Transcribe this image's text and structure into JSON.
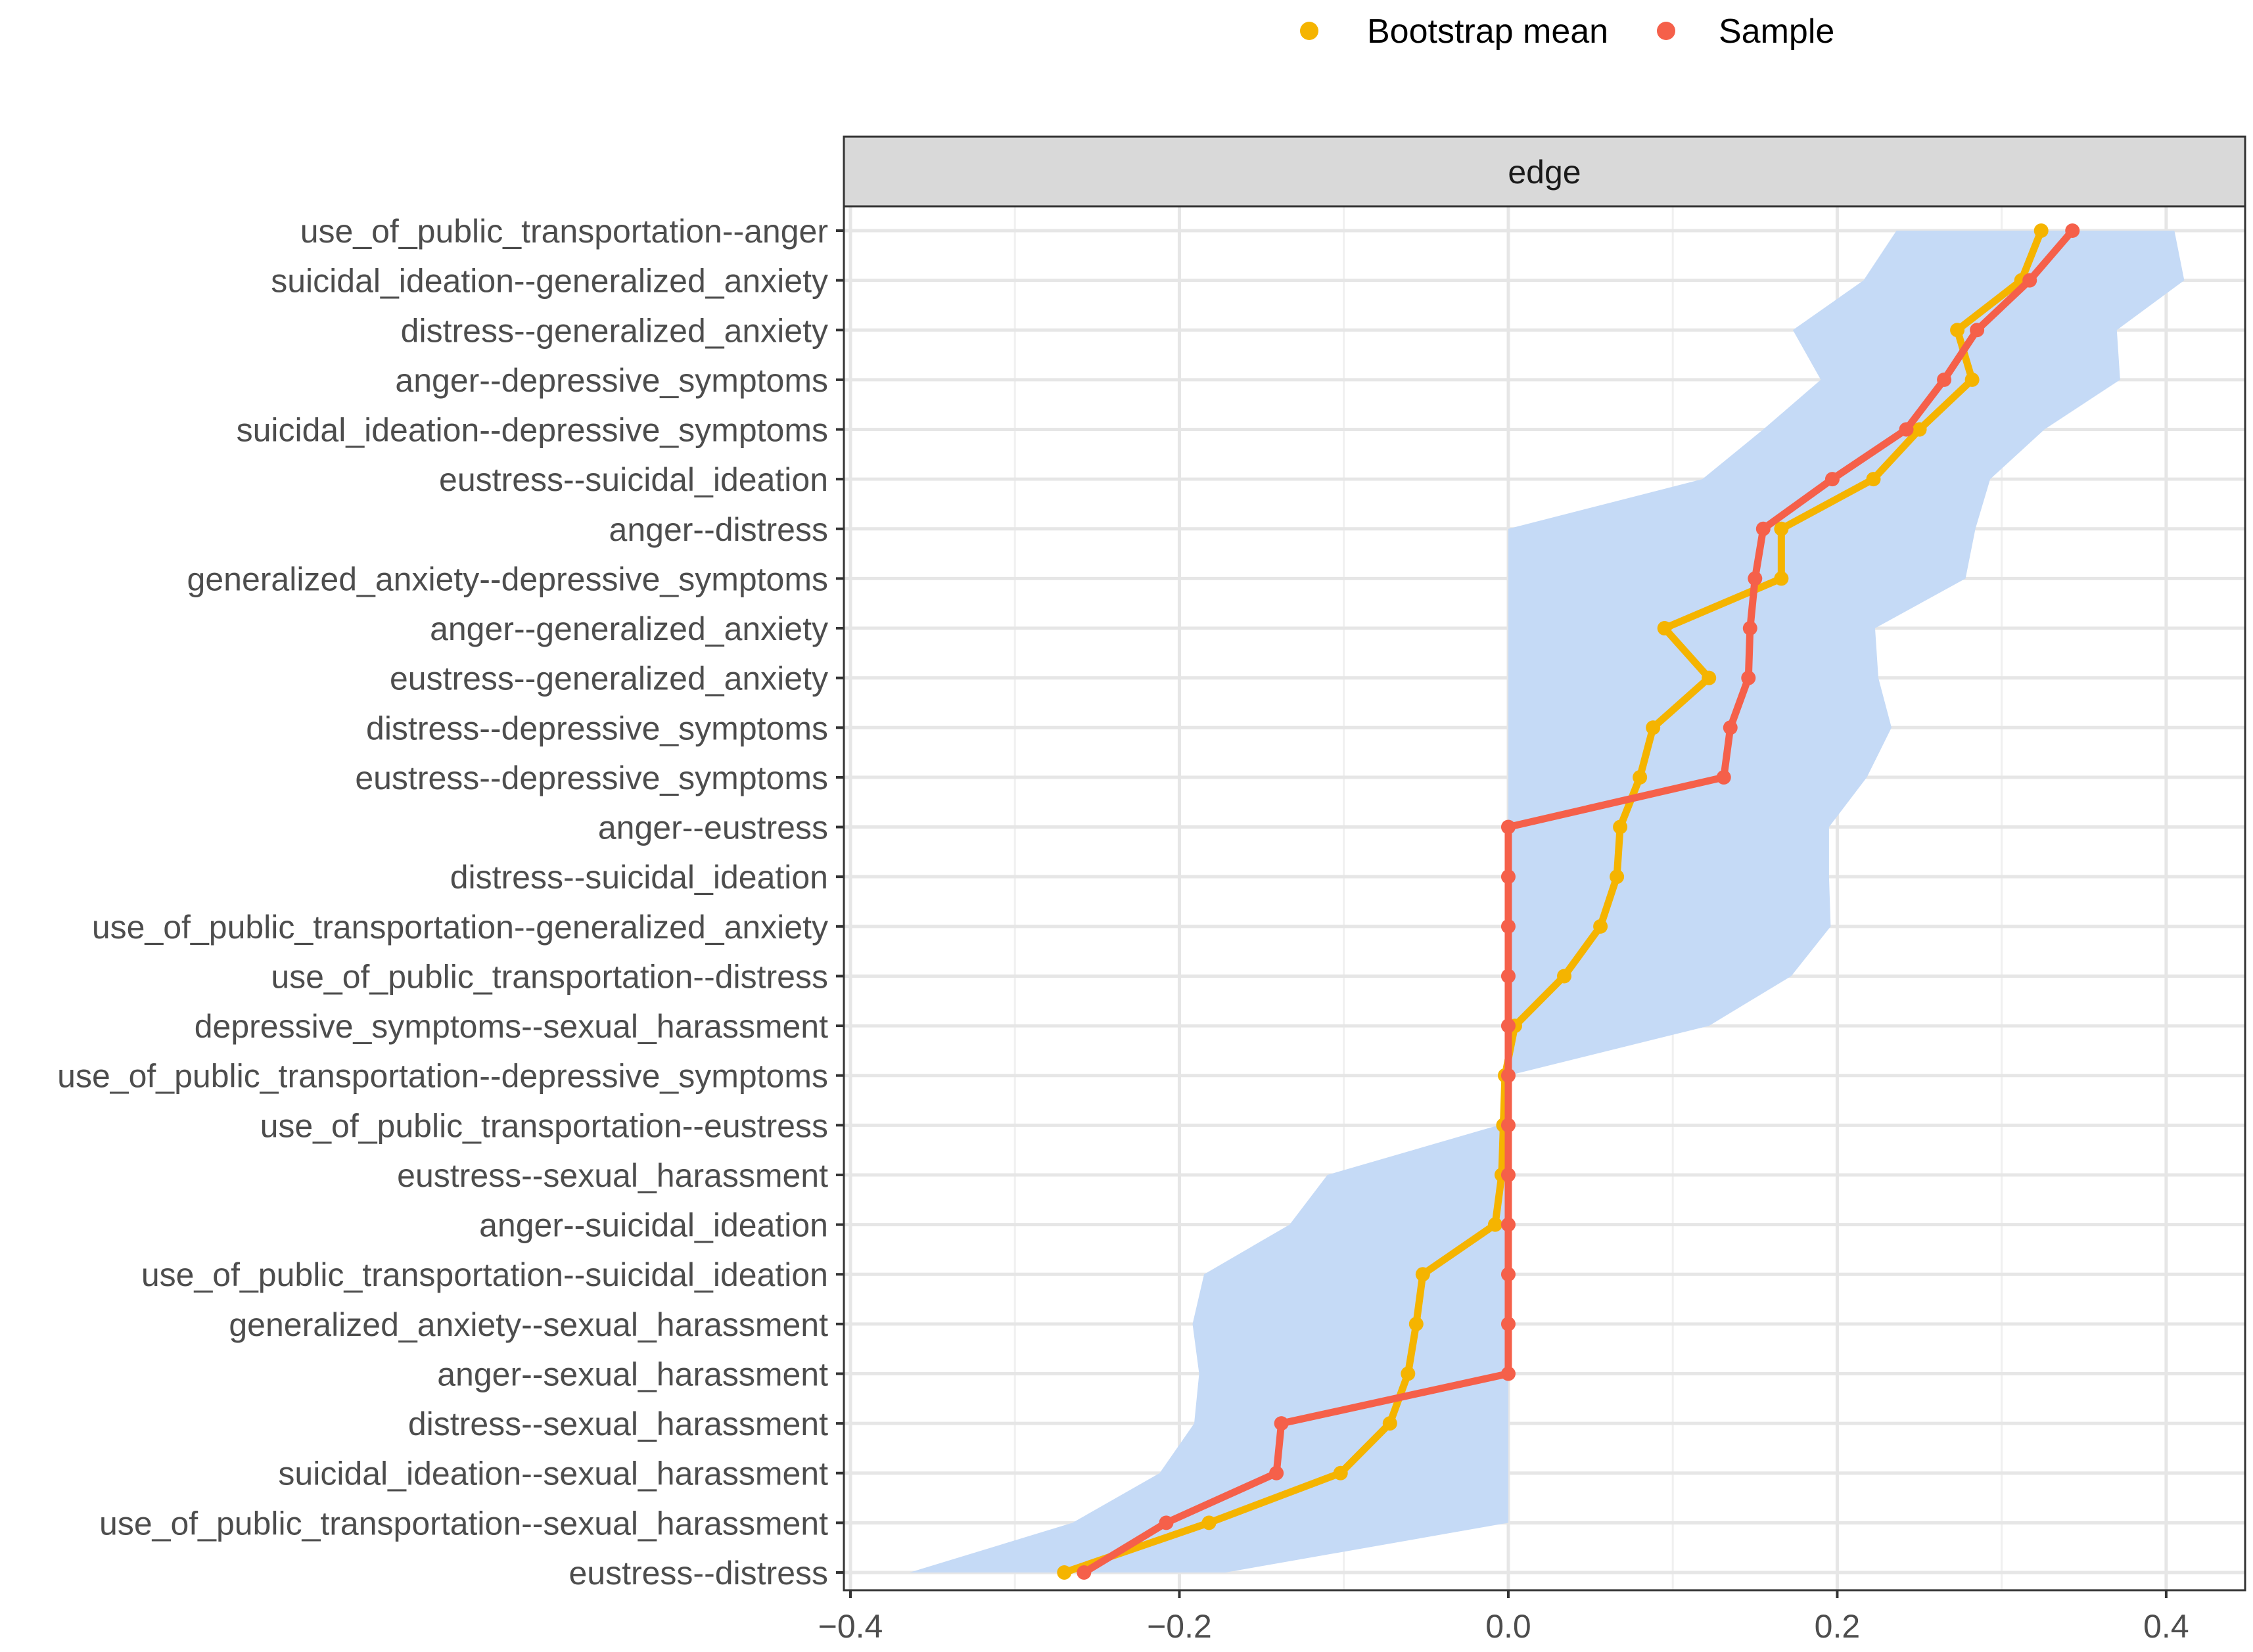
{
  "chart_data": {
    "type": "line",
    "orientation": "horizontal",
    "facet_title": "edge",
    "categories": [
      "use_of_public_transportation--anger",
      "suicidal_ideation--generalized_anxiety",
      "distress--generalized_anxiety",
      "anger--depressive_symptoms",
      "suicidal_ideation--depressive_symptoms",
      "eustress--suicidal_ideation",
      "anger--distress",
      "generalized_anxiety--depressive_symptoms",
      "anger--generalized_anxiety",
      "eustress--generalized_anxiety",
      "distress--depressive_symptoms",
      "eustress--depressive_symptoms",
      "anger--eustress",
      "distress--suicidal_ideation",
      "use_of_public_transportation--generalized_anxiety",
      "use_of_public_transportation--distress",
      "depressive_symptoms--sexual_harassment",
      "use_of_public_transportation--depressive_symptoms",
      "use_of_public_transportation--eustress",
      "eustress--sexual_harassment",
      "anger--suicidal_ideation",
      "use_of_public_transportation--suicidal_ideation",
      "generalized_anxiety--sexual_harassment",
      "anger--sexual_harassment",
      "distress--sexual_harassment",
      "suicidal_ideation--sexual_harassment",
      "use_of_public_transportation--sexual_harassment",
      "eustress--distress"
    ],
    "series": [
      {
        "name": "Bootstrap mean",
        "color": "#F5B400",
        "values": [
          0.324,
          0.312,
          0.273,
          0.282,
          0.25,
          0.222,
          0.166,
          0.166,
          0.095,
          0.122,
          0.088,
          0.08,
          0.068,
          0.066,
          0.056,
          0.034,
          0.004,
          -0.002,
          -0.003,
          -0.004,
          -0.008,
          -0.052,
          -0.056,
          -0.061,
          -0.072,
          -0.102,
          -0.182,
          -0.27
        ]
      },
      {
        "name": "Sample",
        "color": "#F5604A",
        "values": [
          0.343,
          0.317,
          0.285,
          0.265,
          0.242,
          0.197,
          0.155,
          0.15,
          0.147,
          0.146,
          0.135,
          0.131,
          0.0,
          0.0,
          0.0,
          0.0,
          0.0,
          0.0,
          0.0,
          0.0,
          0.0,
          0.0,
          0.0,
          0.0,
          -0.138,
          -0.141,
          -0.208,
          -0.258
        ]
      }
    ],
    "ci": {
      "color": "#C5DAF6",
      "lower": [
        0.236,
        0.216,
        0.173,
        0.19,
        0.155,
        0.118,
        0.0,
        0.0,
        0.0,
        0.0,
        0.0,
        0.0,
        0.0,
        0.0,
        0.0,
        0.0,
        0.0,
        0.0,
        -0.006,
        -0.11,
        -0.133,
        -0.185,
        -0.192,
        -0.188,
        -0.191,
        -0.212,
        -0.265,
        -0.364
      ],
      "upper": [
        0.405,
        0.411,
        0.37,
        0.372,
        0.326,
        0.293,
        0.284,
        0.278,
        0.223,
        0.225,
        0.233,
        0.218,
        0.195,
        0.195,
        0.196,
        0.172,
        0.122,
        0.0,
        0.0,
        0.0,
        0.0,
        0.0,
        0.0,
        0.0,
        0.0,
        0.0,
        0.0,
        -0.172
      ]
    },
    "x_ticks": [
      -0.4,
      -0.2,
      0.0,
      0.2,
      0.4
    ],
    "x_tick_labels": [
      "−0.4",
      "−0.2",
      "0.0",
      "0.2",
      "0.4"
    ],
    "xlim": [
      -0.404,
      0.448
    ],
    "xlabel": "",
    "ylabel": "",
    "grid": true,
    "legend": {
      "position": "top",
      "entries": [
        "Bootstrap mean",
        "Sample"
      ]
    }
  }
}
